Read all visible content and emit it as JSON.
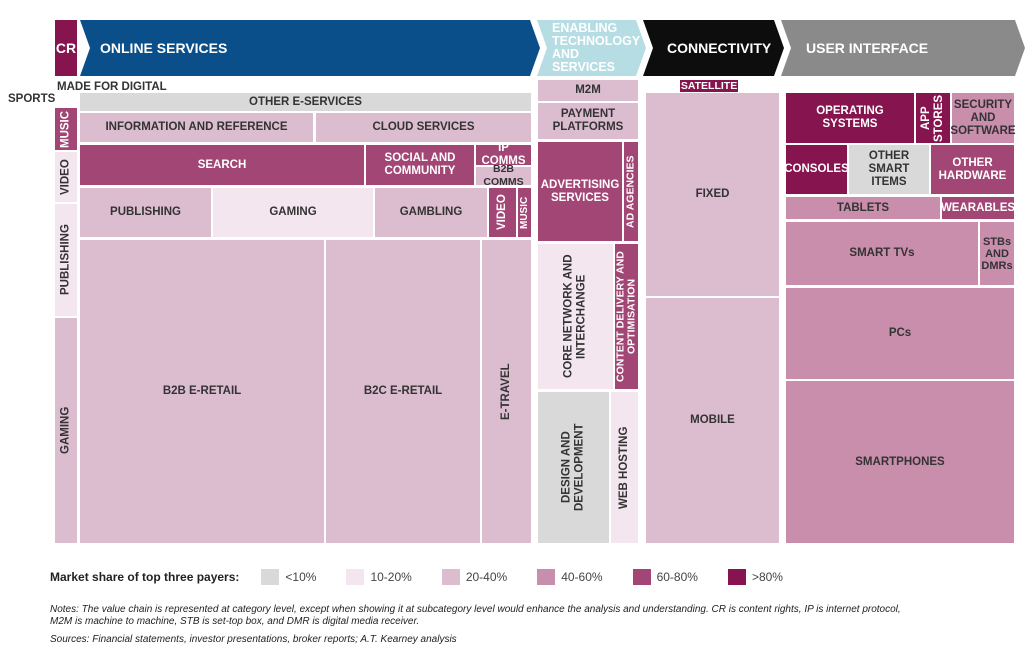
{
  "headers": {
    "cr": "CR",
    "online": "ONLINE SERVICES",
    "enabling": "ENABLING TECHNOLOGY AND SERVICES",
    "connectivity": "CONNECTIVITY",
    "ui": "USER INTERFACE"
  },
  "labels": {
    "sports": "SPORTS",
    "made_for_digital": "MADE FOR DIGITAL"
  },
  "colors": {
    "lt10": "#d9d9d9",
    "b10_20": "#f3e6ee",
    "b20_40": "#dcbdd0",
    "b40_60": "#c98eac",
    "b60_80": "#a24675",
    "gt80": "#86154f",
    "online_header": "#0a4f8a",
    "enabling_header": "#b5dde3",
    "connectivity_header": "#0d0d0d",
    "ui_header": "#8a8a8a"
  },
  "chart_data": {
    "type": "treemap",
    "legend_title": "Market share of top three payers:",
    "legend": [
      {
        "label": "<10%",
        "key": "lt10"
      },
      {
        "label": "10-20%",
        "key": "b10_20"
      },
      {
        "label": "20-40%",
        "key": "b20_40"
      },
      {
        "label": "40-60%",
        "key": "b40_60"
      },
      {
        "label": "60-80%",
        "key": "b60_80"
      },
      {
        "label": ">80%",
        "key": "gt80"
      }
    ],
    "segments": {
      "cr": [
        {
          "name": "MUSIC",
          "share": "60-80%"
        },
        {
          "name": "VIDEO",
          "share": "10-20%"
        },
        {
          "name": "PUBLISHING",
          "share": "10-20%"
        },
        {
          "name": "GAMING",
          "share": "20-40%"
        }
      ],
      "online": [
        {
          "name": "OTHER E-SERVICES",
          "share": "<10%"
        },
        {
          "name": "INFORMATION AND REFERENCE",
          "share": "20-40%"
        },
        {
          "name": "CLOUD SERVICES",
          "share": "20-40%"
        },
        {
          "name": "SEARCH",
          "share": "60-80%"
        },
        {
          "name": "SOCIAL AND COMMUNITY",
          "share": "60-80%"
        },
        {
          "name": "IP COMMS",
          "share": "60-80%"
        },
        {
          "name": "B2B COMMS",
          "share": "20-40%"
        },
        {
          "name": "PUBLISHING",
          "share": "20-40%"
        },
        {
          "name": "GAMING",
          "share": "10-20%"
        },
        {
          "name": "GAMBLING",
          "share": "20-40%"
        },
        {
          "name": "VIDEO",
          "share": "60-80%"
        },
        {
          "name": "MUSIC",
          "share": "60-80%"
        },
        {
          "name": "B2B E-RETAIL",
          "share": "20-40%"
        },
        {
          "name": "B2C E-RETAIL",
          "share": "20-40%"
        },
        {
          "name": "E-TRAVEL",
          "share": "20-40%"
        }
      ],
      "enabling": [
        {
          "name": "M2M",
          "share": "20-40%"
        },
        {
          "name": "PAYMENT PLATFORMS",
          "share": "20-40%"
        },
        {
          "name": "ADVERTISING SERVICES",
          "share": "60-80%"
        },
        {
          "name": "AD AGENCIES",
          "share": "60-80%"
        },
        {
          "name": "CORE NETWORK AND INTERCHANGE",
          "share": "10-20%"
        },
        {
          "name": "CONTENT DELIVERY AND OPTIMISATION",
          "share": "60-80%"
        },
        {
          "name": "DESIGN AND DEVELOPMENT",
          "share": "<10%"
        },
        {
          "name": "WEB HOSTING",
          "share": "10-20%"
        }
      ],
      "connectivity": [
        {
          "name": "SATELLITE",
          "share": ">80%"
        },
        {
          "name": "FIXED",
          "share": "20-40%"
        },
        {
          "name": "MOBILE",
          "share": "20-40%"
        }
      ],
      "ui": [
        {
          "name": "OPERATING SYSTEMS",
          "share": ">80%"
        },
        {
          "name": "APP STORES",
          "share": ">80%"
        },
        {
          "name": "SECURITY AND SOFTWARE",
          "share": "40-60%"
        },
        {
          "name": "CONSOLES",
          "share": ">80%"
        },
        {
          "name": "OTHER SMART ITEMS",
          "share": "<10%"
        },
        {
          "name": "OTHER HARDWARE",
          "share": "60-80%"
        },
        {
          "name": "TABLETS",
          "share": "40-60%"
        },
        {
          "name": "WEARABLES",
          "share": "60-80%"
        },
        {
          "name": "SMART TVs",
          "share": "40-60%"
        },
        {
          "name": "STBs AND DMRs",
          "share": "40-60%"
        },
        {
          "name": "PCs",
          "share": "40-60%"
        },
        {
          "name": "SMARTPHONES",
          "share": "40-60%"
        }
      ]
    }
  },
  "notes": {
    "line1": "Notes: The value chain is represented at category level, except when showing it at subcategory level would enhance the analysis and understanding. CR is content rights, IP is internet protocol,",
    "line2": "M2M is machine to machine, STB is set-top box, and DMR is digital media receiver.",
    "sources": "Sources: Financial statements, investor presentations, broker reports; A.T. Kearney analysis"
  }
}
